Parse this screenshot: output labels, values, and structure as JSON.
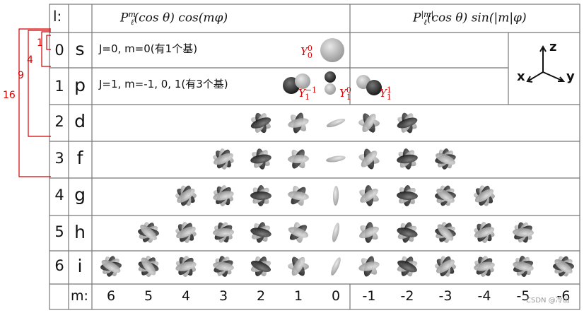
{
  "header": {
    "l_label": "l:",
    "cos_header": "P_ℓ^m(cos θ) cos(mφ)",
    "sin_header": "P_ℓ^|m|(cos θ) sin(|m|φ)"
  },
  "rows": [
    {
      "l": "0",
      "letter": "s",
      "desc": "J=0, m=0(有1个基)"
    },
    {
      "l": "1",
      "letter": "p",
      "desc": "J=1, m=-1, 0, 1(有3个基)"
    },
    {
      "l": "2",
      "letter": "d"
    },
    {
      "l": "3",
      "letter": "f"
    },
    {
      "l": "4",
      "letter": "g"
    },
    {
      "l": "5",
      "letter": "h"
    },
    {
      "l": "6",
      "letter": "i"
    }
  ],
  "m_row": {
    "label": "m:",
    "values": [
      "6",
      "5",
      "4",
      "3",
      "2",
      "1",
      "0",
      "-1",
      "-2",
      "-3",
      "-4",
      "-5",
      "-6"
    ]
  },
  "y_labels": {
    "y00": {
      "base": "Y",
      "sup": "0",
      "sub": "0"
    },
    "y1m1": {
      "base": "Y",
      "sup": "−1",
      "sub": "1"
    },
    "y10": {
      "base": "Y",
      "sup": "0",
      "sub": "1"
    },
    "y11": {
      "base": "Y",
      "sup": "1",
      "sub": "1"
    }
  },
  "brackets": [
    "1",
    "4",
    "9",
    "16"
  ],
  "axes": {
    "x": "x",
    "y": "y",
    "z": "z"
  },
  "watermark": "CSDN @冷山",
  "colors": {
    "red_annotation": "#d40000",
    "grid": "#777777"
  }
}
